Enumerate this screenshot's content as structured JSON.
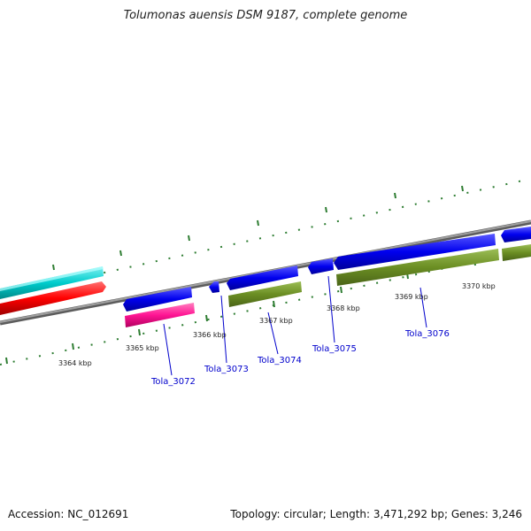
{
  "title": "Tolumonas auensis DSM 9187, complete genome",
  "footer": {
    "accession": "Accession: NC_012691",
    "topology": "Topology: circular; Length: 3,471,292 bp; Genes: 3,246"
  },
  "scale": {
    "unit": "kbp",
    "labels": [
      "3364 kbp",
      "3365 kbp",
      "3366 kbp",
      "3367 kbp",
      "3368 kbp",
      "3369 kbp",
      "3370 kbp"
    ]
  },
  "gene_labels": [
    "Tola_3072",
    "Tola_3073",
    "Tola_3074",
    "Tola_3075",
    "Tola_3076"
  ],
  "colors": {
    "blue": "#0000ee",
    "olive": "#6b8e23",
    "magenta": "#ff1493",
    "red": "#ff0000",
    "cyan": "#00cccc",
    "backbone": "#7a7a7a",
    "tick": "#2e7d32",
    "label": "#0000cc"
  }
}
